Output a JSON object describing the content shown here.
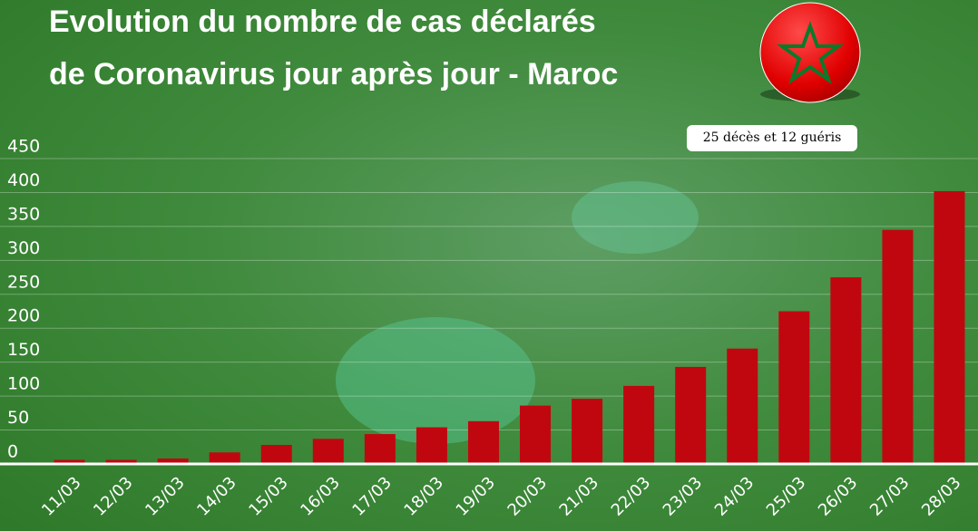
{
  "chart_data": {
    "type": "bar",
    "title": [
      "Evolution du nombre de cas déclarés",
      "de Coronavirus jour après jour - Maroc"
    ],
    "annotation": "25 décès et 12 guéris",
    "categories": [
      "11/03",
      "12/03",
      "13/03",
      "14/03",
      "15/03",
      "16/03",
      "17/03",
      "18/03",
      "19/03",
      "20/03",
      "21/03",
      "22/03",
      "23/03",
      "24/03",
      "25/03",
      "26/03",
      "27/03",
      "28/03"
    ],
    "values": [
      6,
      6,
      8,
      17,
      28,
      37,
      44,
      54,
      63,
      86,
      96,
      115,
      143,
      170,
      225,
      275,
      345,
      402
    ],
    "color": "#c0070f",
    "ylim": [
      0,
      450
    ],
    "yticks": [
      0,
      50,
      100,
      150,
      200,
      250,
      300,
      350,
      400,
      450
    ],
    "grid": true
  }
}
